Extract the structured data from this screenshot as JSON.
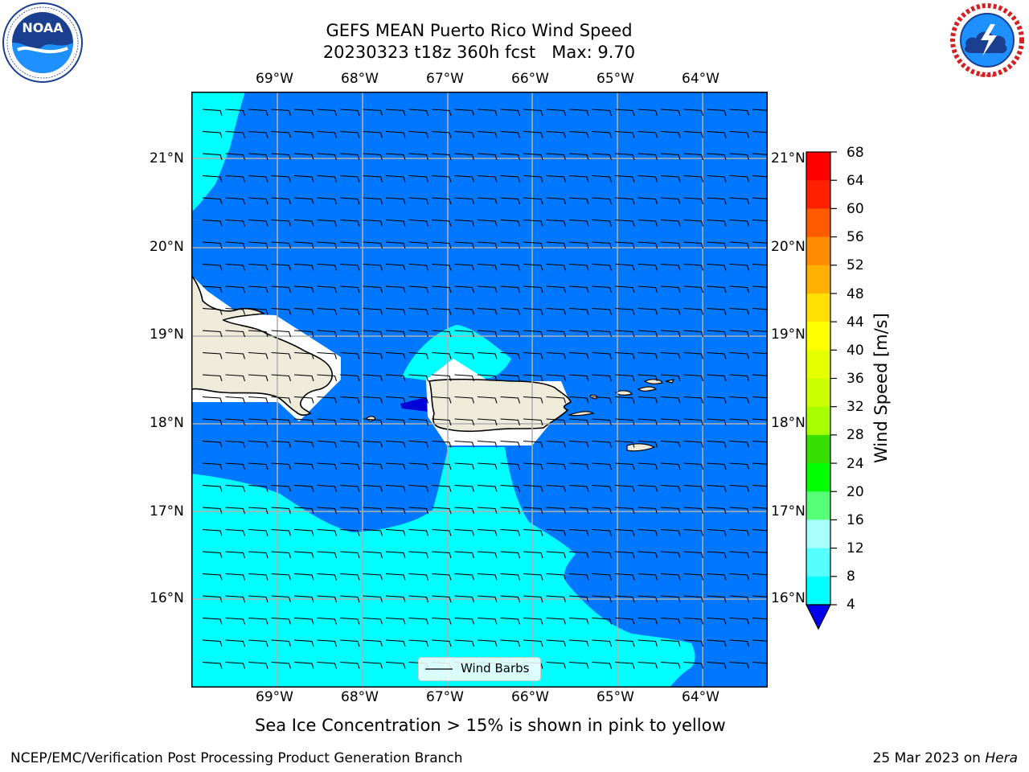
{
  "header": {
    "title_line1": "GEFS MEAN Puerto Rico Wind Speed",
    "title_line2": "20230323 t18z 360h fcst   Max: 9.70"
  },
  "logos": {
    "left": {
      "name": "NOAA",
      "ring_text": "NATIONAL OCEANIC AND ATMOSPHERIC ADMINISTRATION · U.S. DEPARTMENT OF COMMERCE"
    },
    "right": {
      "name": "NATIONAL WEATHER SERVICE"
    }
  },
  "map": {
    "lon_labels": [
      "69°W",
      "68°W",
      "67°W",
      "66°W",
      "65°W",
      "64°W"
    ],
    "lat_labels": [
      "21°N",
      "20°N",
      "19°N",
      "18°N",
      "17°N",
      "16°N"
    ],
    "legend_label": "Wind Barbs",
    "colors": {
      "ocean_low": "#0077ff",
      "ocean_mid": "#00ffff",
      "below_min": "#0000d9",
      "land": "#efebdb",
      "grid": "#b0b0b0"
    }
  },
  "colorbar": {
    "label": "Wind Speed [m/s]",
    "ticks": [
      "68",
      "64",
      "60",
      "56",
      "52",
      "48",
      "44",
      "40",
      "36",
      "32",
      "28",
      "24",
      "20",
      "16",
      "12",
      "8",
      "4"
    ],
    "colors": [
      "#fe0000",
      "#ff2000",
      "#ff5a00",
      "#ff8c00",
      "#ffb000",
      "#ffe000",
      "#ffff00",
      "#e6ff00",
      "#ccff00",
      "#a8ff00",
      "#38e000",
      "#00ff00",
      "#55ff77",
      "#aaffff",
      "#55ffff",
      "#00ffff",
      "#0077ff"
    ],
    "extend_color": "#0000ee"
  },
  "note": "Sea Ice Concentration > 15% is shown in pink to yellow",
  "footer": {
    "left": "NCEP/EMC/Verification Post Processing Product Generation Branch",
    "date": "25 Mar 2023 on ",
    "machine": "Hera"
  }
}
